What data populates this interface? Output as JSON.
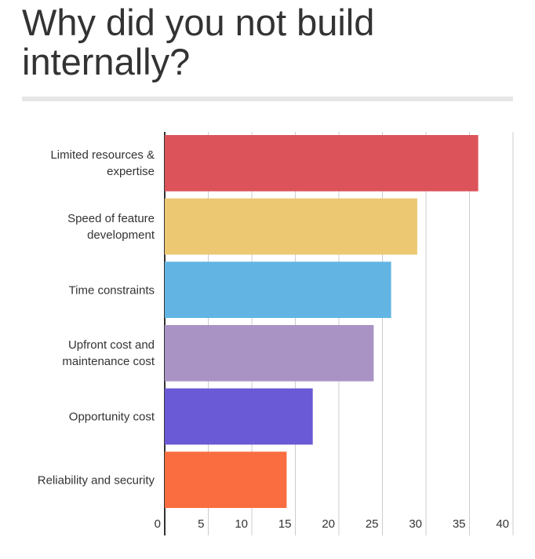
{
  "chart_data": {
    "type": "bar",
    "orientation": "horizontal",
    "title": "Why did you not build internally?",
    "categories": [
      "Limited resources & expertise",
      "Speed of feature development",
      "Time constraints",
      "Upfront cost and maintenance cost",
      "Opportunity cost",
      "Reliability and security"
    ],
    "values": [
      36,
      29,
      26,
      24,
      17,
      14
    ],
    "colors": [
      "#dc535a",
      "#edc873",
      "#62b5e3",
      "#a993c5",
      "#6b5ad6",
      "#f96d40"
    ],
    "xlim": [
      0,
      40
    ],
    "xticks": [
      0,
      5,
      10,
      15,
      20,
      25,
      30,
      35,
      40
    ],
    "grid": true
  }
}
